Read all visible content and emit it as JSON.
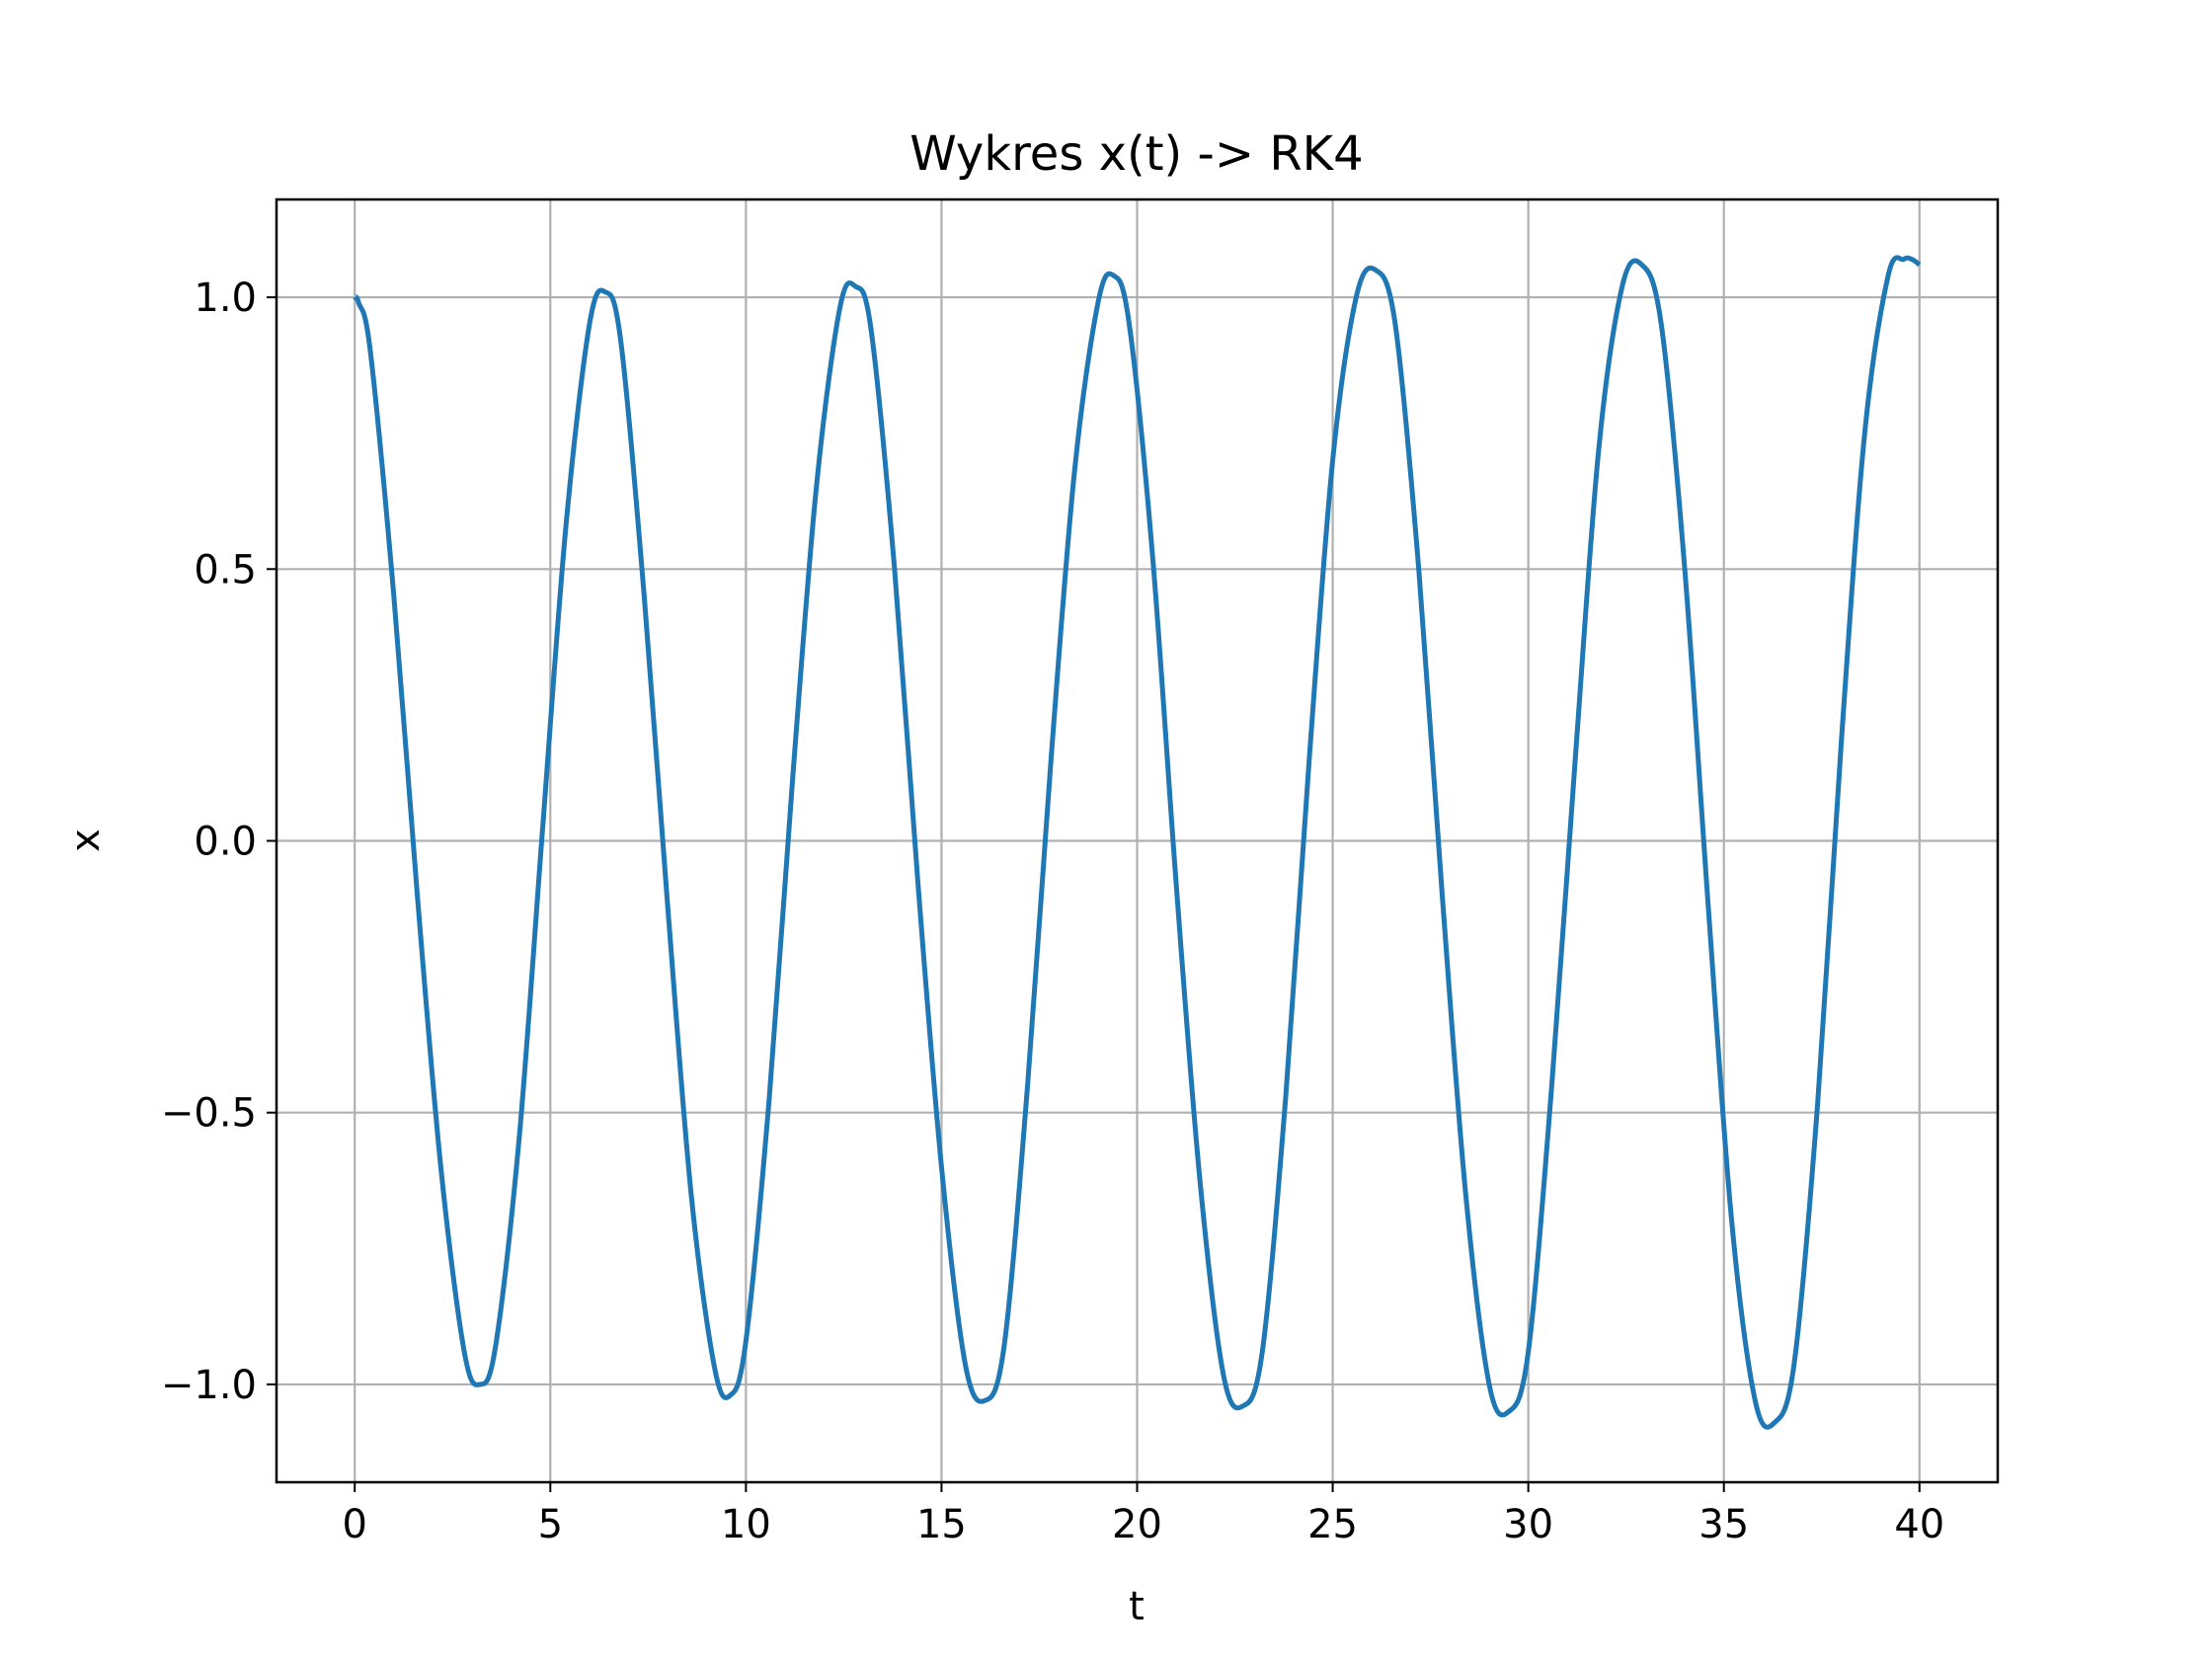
{
  "chart_data": {
    "type": "line",
    "title": "Wykres x(t) -> RK4",
    "xlabel": "t",
    "ylabel": "x",
    "xlim": [
      -2,
      42
    ],
    "ylim": [
      -1.18,
      1.18
    ],
    "xticks": [
      0,
      5,
      10,
      15,
      20,
      25,
      30,
      35,
      40
    ],
    "yticks": [
      -1.0,
      -0.5,
      0.0,
      0.5,
      1.0
    ],
    "ytick_labels": [
      "−1.0",
      "−0.5",
      "0.0",
      "0.5",
      "1.0"
    ],
    "grid": true,
    "line_color": "#1f77b4",
    "series": [
      {
        "x": [
          0,
          0.1,
          0.4,
          1.0,
          1.6,
          2.2,
          2.8,
          3.2,
          3.6,
          4.2,
          4.8,
          5.4,
          6.0,
          6.4,
          6.8,
          7.4,
          8.0,
          8.6,
          9.2,
          9.6,
          10.0,
          10.6,
          11.2,
          11.8,
          12.4,
          12.8,
          13.2,
          13.8,
          14.4,
          15.0,
          15.6,
          16.1,
          16.6,
          17.2,
          17.8,
          18.4,
          19.0,
          19.4,
          19.8,
          20.4,
          21.0,
          21.6,
          22.2,
          22.7,
          23.2,
          23.8,
          24.4,
          25.0,
          25.6,
          26.1,
          26.6,
          27.2,
          27.8,
          28.4,
          29.0,
          29.5,
          30.0,
          30.6,
          31.2,
          31.8,
          32.4,
          32.9,
          33.4,
          34.0,
          34.6,
          35.2,
          35.8,
          36.3,
          36.8,
          37.4,
          38.0,
          38.6,
          39.2,
          39.6,
          39.8,
          40.0
        ],
        "y": [
          1.0,
          0.99,
          0.9,
          0.45,
          -0.1,
          -0.6,
          -0.94,
          -1.0,
          -0.93,
          -0.55,
          0.02,
          0.58,
          0.95,
          1.01,
          0.92,
          0.45,
          -0.12,
          -0.65,
          -0.97,
          -1.02,
          -0.92,
          -0.47,
          0.12,
          0.65,
          0.98,
          1.02,
          0.94,
          0.5,
          -0.08,
          -0.6,
          -0.96,
          -1.03,
          -0.93,
          -0.45,
          0.15,
          0.68,
          0.99,
          1.04,
          0.95,
          0.52,
          -0.08,
          -0.62,
          -0.98,
          -1.04,
          -0.94,
          -0.47,
          0.15,
          0.7,
          1.0,
          1.05,
          0.95,
          0.5,
          -0.1,
          -0.65,
          -1.0,
          -1.05,
          -0.94,
          -0.45,
          0.15,
          0.72,
          1.02,
          1.06,
          0.95,
          0.5,
          -0.12,
          -0.7,
          -1.03,
          -1.07,
          -0.96,
          -0.48,
          0.18,
          0.75,
          1.04,
          1.07,
          1.07,
          1.06
        ]
      }
    ]
  }
}
